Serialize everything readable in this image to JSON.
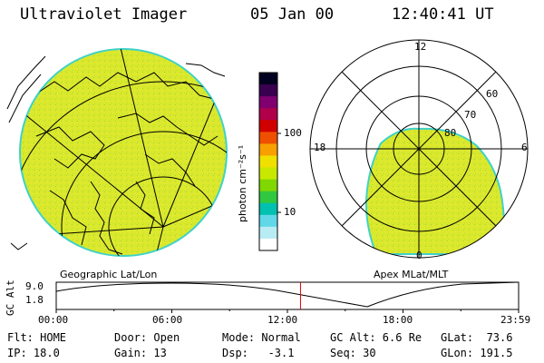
{
  "header": {
    "instrument": "Ultraviolet Imager",
    "date": "05 Jan 00",
    "time": "12:40:41 UT"
  },
  "colorbar": {
    "unit_label": "photon cm⁻²s⁻¹",
    "ticks": [
      "100",
      "10"
    ],
    "colors": [
      "#000020",
      "#3a0050",
      "#800070",
      "#b0004a",
      "#d00000",
      "#ee5000",
      "#f8a000",
      "#f0e000",
      "#c8e800",
      "#80d800",
      "#30c840",
      "#00c0b0",
      "#60d8e8",
      "#b8ecf4",
      "#ffffff"
    ]
  },
  "geo_map": {
    "label": "Geographic Lat/Lon",
    "fill_color": "#ddeb2a",
    "edge_color": "#3fd2c8"
  },
  "polar_plot": {
    "label": "Apex MLat/MLT",
    "mlt_labels": {
      "top": "12",
      "left": "18",
      "right": "6",
      "bottom": "0"
    },
    "lat_labels": [
      "60",
      "70",
      "80"
    ]
  },
  "timeline": {
    "ylabel": "GC Alt",
    "ytick_top": "9.0",
    "ytick_bottom": "1.8",
    "x_ticks": [
      "00:00",
      "06:00",
      "12:00",
      "18:00",
      "23:59"
    ],
    "marker_time_hours": 12.68,
    "marker_color": "#e00000"
  },
  "info": {
    "flt": "Flt: HOME",
    "ip": "IP: 18.0",
    "door": "Door: Open",
    "gain": "Gain: 13",
    "mode": "Mode: Normal",
    "dsp": "Dsp:   -3.1",
    "gcalt": "GC Alt: 6.6 Re",
    "seq": "Seq: 30",
    "glat": "GLat:  73.6",
    "glon": "GLon: 191.5"
  }
}
